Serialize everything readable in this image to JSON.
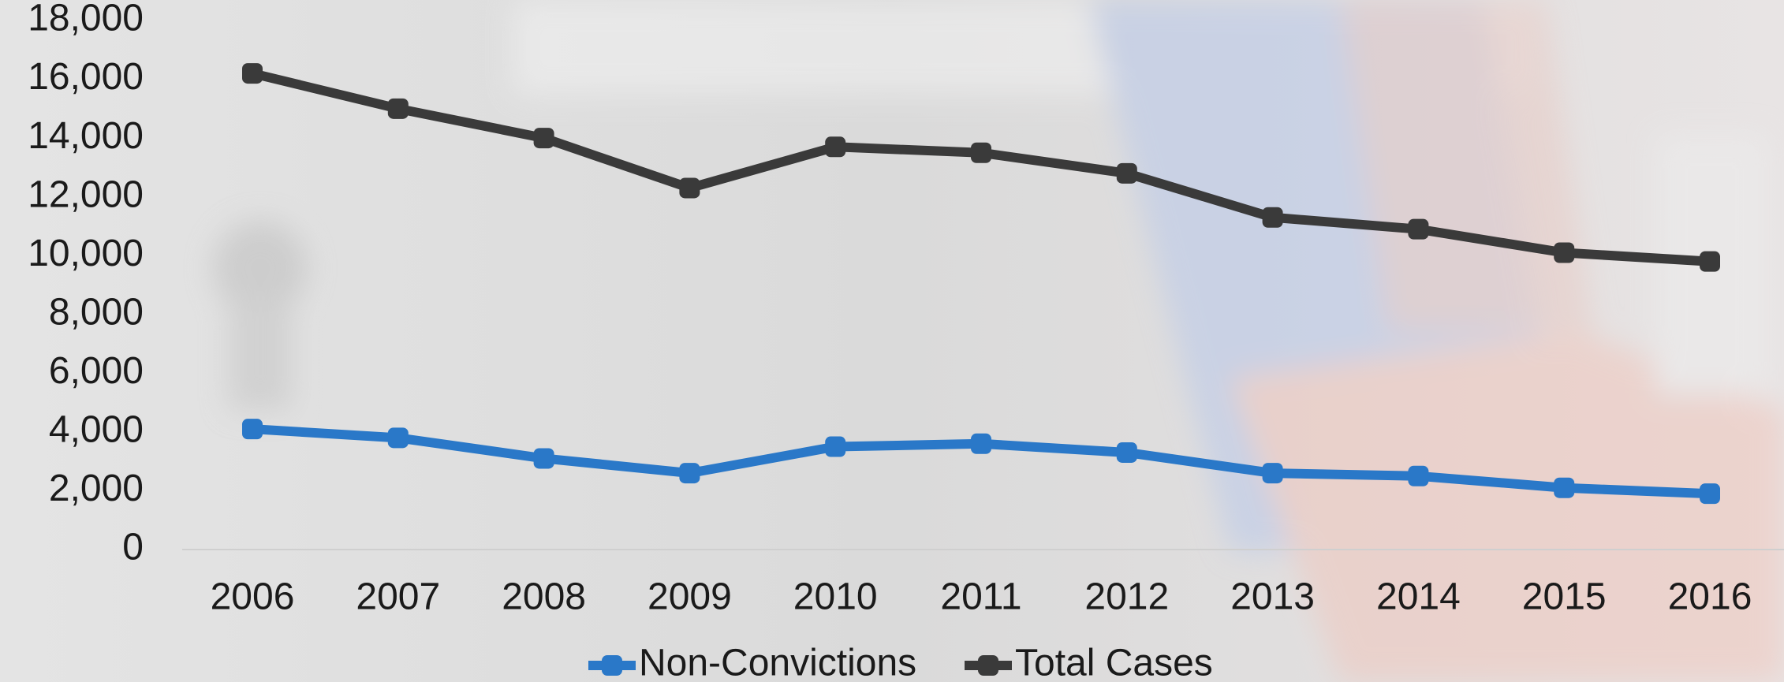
{
  "chart_data": {
    "type": "line",
    "categories": [
      "2006",
      "2007",
      "2008",
      "2009",
      "2010",
      "2011",
      "2012",
      "2013",
      "2014",
      "2015",
      "2016"
    ],
    "series": [
      {
        "name": "Non-Convictions",
        "color": "#2a78c8",
        "values": [
          4100,
          3800,
          3100,
          2600,
          3500,
          3600,
          3300,
          2600,
          2500,
          2100,
          1900
        ]
      },
      {
        "name": "Total Cases",
        "color": "#3a3a3a",
        "values": [
          16200,
          15000,
          14000,
          12300,
          13700,
          13500,
          12800,
          11300,
          10900,
          10100,
          9800
        ]
      }
    ],
    "ylim": [
      0,
      18000
    ],
    "yticks": [
      0,
      {
        "value": 2000,
        "label": "2,000"
      },
      {
        "value": 4000,
        "label": "4,000"
      },
      {
        "value": 6000,
        "label": "6,000"
      },
      {
        "value": 8000,
        "label": "8,000"
      },
      {
        "value": 10000,
        "label": "10,000"
      },
      {
        "value": 12000,
        "label": "12,000"
      },
      {
        "value": 14000,
        "label": "14,000"
      },
      {
        "value": 16000,
        "label": "16,000"
      },
      {
        "value": 18000,
        "label": "18,000"
      }
    ],
    "grid": false,
    "legend": "bottom"
  }
}
